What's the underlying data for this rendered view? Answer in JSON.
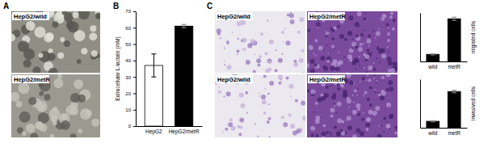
{
  "panels": [
    "A",
    "B",
    "C"
  ],
  "images": [
    {
      "label": "HepG2/wild"
    },
    {
      "label": "HepG2/metR"
    },
    {
      "label": "HepG2/wild"
    },
    {
      "label": "HepG2/metR"
    },
    {
      "label": "HepG2/wild"
    },
    {
      "label": "HepG2/metR"
    }
  ],
  "chart_data": [
    {
      "type": "bar",
      "y_label": "Extracellular L-lactate (mM)",
      "categories": [
        "HepG2",
        "HepG2/metR"
      ],
      "values": [
        37,
        61
      ],
      "errors": [
        7,
        1
      ],
      "colors": [
        "#ffffff",
        "#000000"
      ],
      "ylim": [
        0,
        70
      ],
      "yticks": [
        0,
        10,
        20,
        30,
        40,
        50,
        60,
        70
      ],
      "grid": false
    },
    {
      "type": "bar",
      "y_label": "migrated cells",
      "categories": [
        "wild",
        "metR"
      ],
      "values": [
        22,
        132
      ],
      "errors": [
        2,
        5
      ],
      "color": "#000000",
      "ylim": [
        0,
        150
      ],
      "tick_labels": "x",
      "grid": false
    },
    {
      "type": "bar",
      "y_label": "invasived cells",
      "categories": [
        "wild",
        "metR"
      ],
      "values": [
        20,
        112
      ],
      "errors": [
        2,
        4
      ],
      "color": "#000000",
      "ylim": [
        0,
        150
      ],
      "tick_labels": "x",
      "grid": false
    }
  ]
}
